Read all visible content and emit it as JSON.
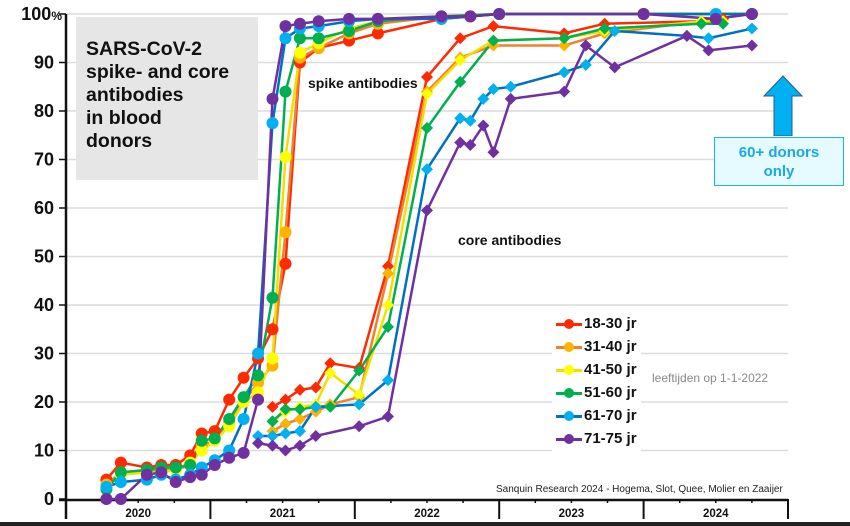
{
  "chart_data": {
    "type": "line",
    "title": "SARS-CoV-2\nspike- and core\nantibodies\nin blood\ndonors",
    "xlabel": "",
    "ylabel": "",
    "ylim": [
      0,
      100
    ],
    "xlim": [
      2020.0,
      2025.0
    ],
    "y_ticks": [
      "0",
      "10",
      "20",
      "30",
      "40",
      "50",
      "60",
      "70",
      "80",
      "90",
      "100%"
    ],
    "y_tick_values": [
      0,
      10,
      20,
      30,
      40,
      50,
      60,
      70,
      80,
      90,
      100
    ],
    "x_tick_labels": [
      "2020",
      "2021",
      "2022",
      "2023",
      "2024"
    ],
    "grid": true,
    "legend_position": "center-right",
    "legend_note": "leeftijden op 1-1-2022",
    "annotations": {
      "spike": "spike antibodies",
      "core": "core antibodies",
      "callout": "60+ donors\nonly",
      "credit": "Sanquin Research 2024 - Hogema, Slot, Quee, Molier en Zaaijer"
    },
    "series": [
      {
        "name": "18-30 jr",
        "color": "#ff2a00",
        "line_color": "#ff2a00",
        "spike": [
          [
            2020.28,
            4
          ],
          [
            2020.38,
            7.5
          ],
          [
            2020.56,
            6.5
          ],
          [
            2020.66,
            7
          ],
          [
            2020.76,
            7
          ],
          [
            2020.86,
            9
          ],
          [
            2020.94,
            13.5
          ],
          [
            2021.03,
            14
          ],
          [
            2021.13,
            20.5
          ],
          [
            2021.23,
            25
          ],
          [
            2021.33,
            29
          ],
          [
            2021.43,
            35
          ],
          [
            2021.52,
            48.5
          ],
          [
            2021.62,
            90
          ],
          [
            2021.75,
            93
          ],
          [
            2021.96,
            94.5
          ],
          [
            2022.16,
            96
          ],
          [
            2022.6,
            99
          ],
          [
            2022.8,
            99.5
          ],
          [
            2023.0,
            100
          ],
          [
            2024.0,
            100
          ],
          [
            2024.75,
            100
          ]
        ],
        "core": [
          [
            2021.43,
            19
          ],
          [
            2021.52,
            20.5
          ],
          [
            2021.62,
            22.5
          ],
          [
            2021.73,
            23
          ],
          [
            2021.83,
            28
          ],
          [
            2022.03,
            27
          ],
          [
            2022.23,
            48
          ],
          [
            2022.5,
            87
          ],
          [
            2022.73,
            95
          ],
          [
            2022.96,
            97.5
          ],
          [
            2023.45,
            96
          ],
          [
            2023.73,
            98
          ],
          [
            2024.4,
            98.5
          ],
          [
            2024.55,
            99
          ]
        ]
      },
      {
        "name": "31-40 jr",
        "color": "#ffb300",
        "line_color": "#f08030",
        "spike": [
          [
            2020.28,
            3
          ],
          [
            2020.38,
            5.5
          ],
          [
            2020.56,
            5.5
          ],
          [
            2020.66,
            6
          ],
          [
            2020.76,
            6
          ],
          [
            2020.86,
            7
          ],
          [
            2020.94,
            11
          ],
          [
            2021.03,
            12
          ],
          [
            2021.13,
            16
          ],
          [
            2021.23,
            20
          ],
          [
            2021.33,
            24
          ],
          [
            2021.43,
            27.5
          ],
          [
            2021.52,
            55
          ],
          [
            2021.62,
            91
          ],
          [
            2021.75,
            93
          ],
          [
            2021.96,
            96
          ],
          [
            2022.16,
            98
          ],
          [
            2022.6,
            99.5
          ],
          [
            2023.0,
            100
          ],
          [
            2024.0,
            100
          ],
          [
            2024.75,
            100
          ]
        ],
        "core": [
          [
            2021.43,
            14
          ],
          [
            2021.52,
            15.5
          ],
          [
            2021.62,
            16.5
          ],
          [
            2021.73,
            18
          ],
          [
            2021.83,
            19.5
          ],
          [
            2022.03,
            21
          ],
          [
            2022.23,
            46.5
          ],
          [
            2022.5,
            84
          ],
          [
            2022.73,
            91
          ],
          [
            2022.96,
            93.5
          ],
          [
            2023.45,
            93.5
          ],
          [
            2023.73,
            96
          ],
          [
            2024.4,
            98.5
          ],
          [
            2024.55,
            98.5
          ]
        ]
      },
      {
        "name": "41-50 jr",
        "color": "#ffff00",
        "line_color": "#f0e000",
        "spike": [
          [
            2020.28,
            2.5
          ],
          [
            2020.38,
            5
          ],
          [
            2020.56,
            5.5
          ],
          [
            2020.66,
            5.5
          ],
          [
            2020.76,
            6
          ],
          [
            2020.86,
            7.5
          ],
          [
            2020.94,
            10
          ],
          [
            2021.03,
            12
          ],
          [
            2021.13,
            15
          ],
          [
            2021.23,
            20
          ],
          [
            2021.33,
            22
          ],
          [
            2021.43,
            29
          ],
          [
            2021.52,
            70.5
          ],
          [
            2021.62,
            92
          ],
          [
            2021.75,
            94
          ],
          [
            2021.96,
            97
          ],
          [
            2022.16,
            98.5
          ],
          [
            2022.6,
            99.5
          ],
          [
            2023.0,
            100
          ],
          [
            2024.0,
            100
          ],
          [
            2024.75,
            100
          ]
        ],
        "core": [
          [
            2021.43,
            16
          ],
          [
            2021.52,
            18
          ],
          [
            2021.62,
            19
          ],
          [
            2021.73,
            19.5
          ],
          [
            2021.83,
            26
          ],
          [
            2022.03,
            21.5
          ],
          [
            2022.23,
            40
          ],
          [
            2022.5,
            83.5
          ],
          [
            2022.73,
            90.5
          ],
          [
            2022.96,
            94.5
          ],
          [
            2023.45,
            95
          ],
          [
            2023.73,
            96.5
          ],
          [
            2024.4,
            98.5
          ],
          [
            2024.55,
            98.5
          ]
        ]
      },
      {
        "name": "51-60 jr",
        "color": "#00b050",
        "line_color": "#00b050",
        "spike": [
          [
            2020.28,
            2
          ],
          [
            2020.38,
            5.5
          ],
          [
            2020.56,
            6
          ],
          [
            2020.66,
            6.5
          ],
          [
            2020.76,
            6.5
          ],
          [
            2020.86,
            7
          ],
          [
            2020.94,
            12
          ],
          [
            2021.03,
            12.5
          ],
          [
            2021.13,
            16.5
          ],
          [
            2021.23,
            21
          ],
          [
            2021.33,
            25.5
          ],
          [
            2021.43,
            41.5
          ],
          [
            2021.52,
            84
          ],
          [
            2021.62,
            95
          ],
          [
            2021.75,
            95
          ],
          [
            2021.96,
            96.5
          ],
          [
            2022.16,
            98.5
          ],
          [
            2022.6,
            99.5
          ],
          [
            2023.0,
            100
          ],
          [
            2024.0,
            100
          ],
          [
            2024.75,
            100
          ]
        ],
        "core": [
          [
            2021.43,
            16
          ],
          [
            2021.52,
            18.5
          ],
          [
            2021.62,
            18.5
          ],
          [
            2021.73,
            19
          ],
          [
            2021.83,
            19
          ],
          [
            2022.03,
            26.5
          ],
          [
            2022.23,
            35.5
          ],
          [
            2022.5,
            76.5
          ],
          [
            2022.73,
            86
          ],
          [
            2022.96,
            94.5
          ],
          [
            2023.45,
            95
          ],
          [
            2023.73,
            97
          ],
          [
            2024.4,
            98
          ],
          [
            2024.55,
            98
          ]
        ]
      },
      {
        "name": "61-70 jr",
        "color": "#00b0f0",
        "line_color": "#0070c0",
        "spike": [
          [
            2020.28,
            2.5
          ],
          [
            2020.38,
            3.5
          ],
          [
            2020.56,
            4
          ],
          [
            2020.66,
            5
          ],
          [
            2020.76,
            4
          ],
          [
            2020.86,
            5
          ],
          [
            2020.94,
            6.5
          ],
          [
            2021.03,
            8
          ],
          [
            2021.13,
            10
          ],
          [
            2021.23,
            16.5
          ],
          [
            2021.33,
            30
          ],
          [
            2021.43,
            77.5
          ],
          [
            2021.52,
            95
          ],
          [
            2021.62,
            97
          ],
          [
            2021.75,
            97.5
          ],
          [
            2021.96,
            98.5
          ],
          [
            2022.16,
            99
          ],
          [
            2022.6,
            99
          ],
          [
            2023.0,
            100
          ],
          [
            2024.0,
            100
          ],
          [
            2024.5,
            100
          ],
          [
            2024.75,
            100
          ]
        ],
        "core": [
          [
            2021.33,
            13
          ],
          [
            2021.43,
            13
          ],
          [
            2021.52,
            13.5
          ],
          [
            2021.62,
            14
          ],
          [
            2021.73,
            19
          ],
          [
            2022.03,
            19.5
          ],
          [
            2022.23,
            24.5
          ],
          [
            2022.5,
            68
          ],
          [
            2022.73,
            78.5
          ],
          [
            2022.8,
            78
          ],
          [
            2022.89,
            82.5
          ],
          [
            2022.96,
            84.5
          ],
          [
            2023.08,
            85
          ],
          [
            2023.45,
            88
          ],
          [
            2023.6,
            89.5
          ],
          [
            2023.8,
            96.5
          ],
          [
            2024.3,
            95.5
          ],
          [
            2024.45,
            95
          ],
          [
            2024.75,
            97
          ]
        ]
      },
      {
        "name": "71-75 jr",
        "color": "#7030a0",
        "line_color": "#7030a0",
        "spike": [
          [
            2020.28,
            0
          ],
          [
            2020.38,
            0
          ],
          [
            2020.56,
            5
          ],
          [
            2020.66,
            5.5
          ],
          [
            2020.76,
            3.5
          ],
          [
            2020.86,
            4.5
          ],
          [
            2020.94,
            5
          ],
          [
            2021.03,
            7
          ],
          [
            2021.13,
            8.5
          ],
          [
            2021.23,
            9.5
          ],
          [
            2021.33,
            20.5
          ],
          [
            2021.43,
            82.5
          ],
          [
            2021.52,
            97.5
          ],
          [
            2021.62,
            98
          ],
          [
            2021.75,
            98.5
          ],
          [
            2021.96,
            99
          ],
          [
            2022.16,
            99
          ],
          [
            2022.6,
            99.5
          ],
          [
            2022.8,
            99.5
          ],
          [
            2023.0,
            100
          ],
          [
            2024.0,
            100
          ],
          [
            2024.5,
            99
          ],
          [
            2024.75,
            100
          ]
        ],
        "core": [
          [
            2021.33,
            11.5
          ],
          [
            2021.43,
            11
          ],
          [
            2021.52,
            10
          ],
          [
            2021.62,
            11
          ],
          [
            2021.73,
            13
          ],
          [
            2022.03,
            15
          ],
          [
            2022.23,
            17
          ],
          [
            2022.5,
            59.5
          ],
          [
            2022.73,
            73.5
          ],
          [
            2022.8,
            73
          ],
          [
            2022.89,
            77
          ],
          [
            2022.96,
            71.5
          ],
          [
            2023.08,
            82.5
          ],
          [
            2023.45,
            84
          ],
          [
            2023.6,
            93.5
          ],
          [
            2023.8,
            89
          ],
          [
            2024.3,
            95.5
          ],
          [
            2024.45,
            92.5
          ],
          [
            2024.75,
            93.5
          ]
        ]
      }
    ]
  }
}
